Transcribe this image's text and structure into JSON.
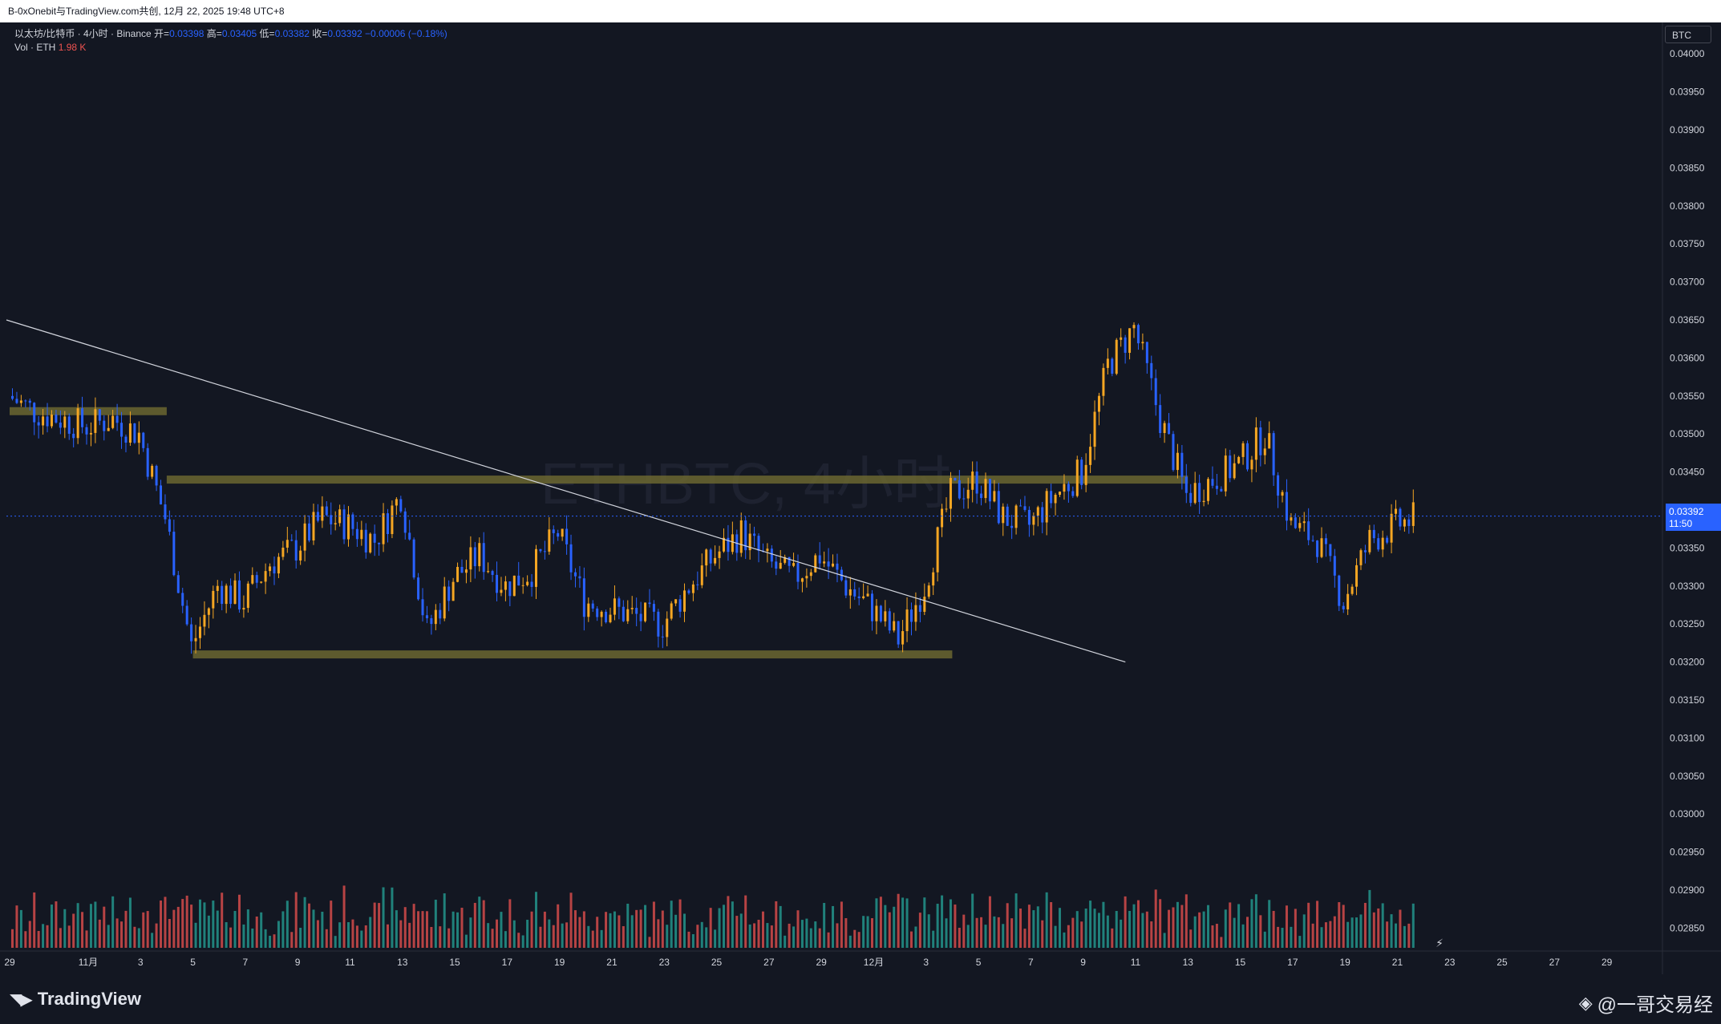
{
  "header": {
    "title": "B-0xOnebit与TradingView.com共创, 12月 22, 2025 19:48 UTC+8"
  },
  "legend": {
    "symbol_line": "以太坊/比特币 · 4小时 · Binance",
    "open_label": "开=",
    "open_value": "0.03398",
    "high_label": "高=",
    "high_value": "0.03405",
    "low_label": "低=",
    "low_value": "0.03382",
    "close_label": "收=",
    "close_value": "0.03392",
    "change": "−0.00006 (−0.18%)",
    "vol_label": "Vol · ETH",
    "vol_value": "1.98 K"
  },
  "symbol_badge": "BTC",
  "price_tag": {
    "price": "0.03392",
    "countdown": "11:50"
  },
  "watermark": "ETHBTC, 4小时",
  "footer": {
    "brand": "TradingView",
    "author": "@一哥交易经"
  },
  "colors": {
    "background": "#131722",
    "up": "#f5a623",
    "down": "#2962ff",
    "vol_up": "#26a69a",
    "vol_down": "#ef5350",
    "zone": "#6b6630",
    "trendline": "#d1d4dc",
    "last_price": "#2962ff"
  },
  "chart_data": {
    "type": "candlestick",
    "symbol": "ETHBTC",
    "interval": "4小时",
    "exchange": "Binance",
    "y_axis_ticks": [
      "0.04000",
      "0.03950",
      "0.03900",
      "0.03850",
      "0.03800",
      "0.03750",
      "0.03700",
      "0.03650",
      "0.03600",
      "0.03550",
      "0.03500",
      "0.03450",
      "0.03400",
      "0.03350",
      "0.03300",
      "0.03250",
      "0.03200",
      "0.03150",
      "0.03100",
      "0.03050",
      "0.03000",
      "0.02950",
      "0.02900",
      "0.02850"
    ],
    "ylim": [
      0.0282,
      0.04
    ],
    "x_axis_ticks": [
      "29",
      "11月",
      "3",
      "5",
      "7",
      "9",
      "11",
      "13",
      "15",
      "17",
      "19",
      "21",
      "23",
      "25",
      "27",
      "29",
      "12月",
      "3",
      "5",
      "7",
      "9",
      "11",
      "13",
      "15",
      "17",
      "19",
      "21",
      "23",
      "25",
      "27",
      "29"
    ],
    "price_path": [
      {
        "date": "10-29",
        "price": 0.0355
      },
      {
        "date": "10-30",
        "price": 0.0353
      },
      {
        "date": "10-31",
        "price": 0.0352
      },
      {
        "date": "11-01",
        "price": 0.0351
      },
      {
        "date": "11-02",
        "price": 0.0352
      },
      {
        "date": "11-03",
        "price": 0.035
      },
      {
        "date": "11-04",
        "price": 0.0339
      },
      {
        "date": "11-05",
        "price": 0.0322
      },
      {
        "date": "11-06",
        "price": 0.033
      },
      {
        "date": "11-07",
        "price": 0.0328
      },
      {
        "date": "11-08",
        "price": 0.0333
      },
      {
        "date": "11-09",
        "price": 0.0335
      },
      {
        "date": "11-10",
        "price": 0.0339
      },
      {
        "date": "11-11",
        "price": 0.0338
      },
      {
        "date": "11-12",
        "price": 0.0336
      },
      {
        "date": "11-13",
        "price": 0.0342
      },
      {
        "date": "11-14",
        "price": 0.0324
      },
      {
        "date": "11-15",
        "price": 0.0331
      },
      {
        "date": "11-16",
        "price": 0.0334
      },
      {
        "date": "11-17",
        "price": 0.033
      },
      {
        "date": "11-18",
        "price": 0.0332
      },
      {
        "date": "11-19",
        "price": 0.0337
      },
      {
        "date": "11-20",
        "price": 0.0328
      },
      {
        "date": "11-21",
        "price": 0.0327
      },
      {
        "date": "11-22",
        "price": 0.0326
      },
      {
        "date": "11-23",
        "price": 0.0325
      },
      {
        "date": "11-24",
        "price": 0.033
      },
      {
        "date": "11-25",
        "price": 0.0334
      },
      {
        "date": "11-26",
        "price": 0.0337
      },
      {
        "date": "11-27",
        "price": 0.0333
      },
      {
        "date": "11-28",
        "price": 0.0331
      },
      {
        "date": "11-29",
        "price": 0.0334
      },
      {
        "date": "11-30",
        "price": 0.033
      },
      {
        "date": "12-01",
        "price": 0.0327
      },
      {
        "date": "12-02",
        "price": 0.0323
      },
      {
        "date": "12-03",
        "price": 0.033
      },
      {
        "date": "12-04",
        "price": 0.0342
      },
      {
        "date": "12-05",
        "price": 0.0344
      },
      {
        "date": "12-06",
        "price": 0.0339
      },
      {
        "date": "12-07",
        "price": 0.0338
      },
      {
        "date": "12-08",
        "price": 0.0342
      },
      {
        "date": "12-09",
        "price": 0.0345
      },
      {
        "date": "12-10",
        "price": 0.0359
      },
      {
        "date": "12-11",
        "price": 0.0364
      },
      {
        "date": "12-12",
        "price": 0.0352
      },
      {
        "date": "12-13",
        "price": 0.0342
      },
      {
        "date": "12-14",
        "price": 0.0344
      },
      {
        "date": "12-15",
        "price": 0.0346
      },
      {
        "date": "12-16",
        "price": 0.035
      },
      {
        "date": "12-17",
        "price": 0.0338
      },
      {
        "date": "12-18",
        "price": 0.0336
      },
      {
        "date": "12-19",
        "price": 0.0328
      },
      {
        "date": "12-20",
        "price": 0.0336
      },
      {
        "date": "12-21",
        "price": 0.0338
      },
      {
        "date": "12-22",
        "price": 0.03392
      }
    ],
    "support_resistance_zones": [
      {
        "name": "zone-top-left",
        "from": "10-29",
        "to": "11-04",
        "price": 0.0353
      },
      {
        "name": "zone-mid",
        "from": "11-04",
        "to": "12-13",
        "price": 0.0344
      },
      {
        "name": "zone-bottom",
        "from": "11-05",
        "to": "12-04",
        "price": 0.0321
      }
    ],
    "trendline": {
      "start": {
        "date": "10-29",
        "price": 0.0365
      },
      "end": {
        "date": "12-10",
        "price": 0.032
      }
    },
    "last_price": 0.03392
  }
}
